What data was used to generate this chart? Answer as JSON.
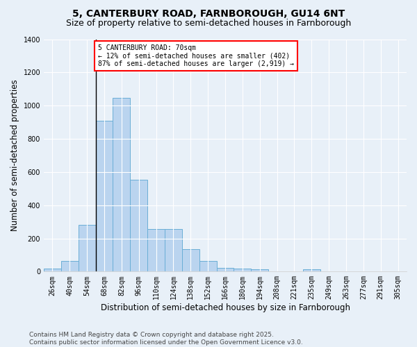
{
  "title1": "5, CANTERBURY ROAD, FARNBOROUGH, GU14 6NT",
  "title2": "Size of property relative to semi-detached houses in Farnborough",
  "xlabel": "Distribution of semi-detached houses by size in Farnborough",
  "ylabel": "Number of semi-detached properties",
  "annotation_title": "5 CANTERBURY ROAD: 70sqm",
  "annotation_line2": "← 12% of semi-detached houses are smaller (402)",
  "annotation_line3": "87% of semi-detached houses are larger (2,919) →",
  "footer1": "Contains HM Land Registry data © Crown copyright and database right 2025.",
  "footer2": "Contains public sector information licensed under the Open Government Licence v3.0.",
  "categories": [
    "26sqm",
    "40sqm",
    "54sqm",
    "68sqm",
    "82sqm",
    "96sqm",
    "110sqm",
    "124sqm",
    "138sqm",
    "152sqm",
    "166sqm",
    "180sqm",
    "194sqm",
    "208sqm",
    "221sqm",
    "235sqm",
    "249sqm",
    "263sqm",
    "277sqm",
    "291sqm",
    "305sqm"
  ],
  "values": [
    18,
    65,
    280,
    910,
    1045,
    555,
    255,
    255,
    135,
    65,
    22,
    18,
    12,
    0,
    0,
    12,
    0,
    0,
    0,
    0,
    0
  ],
  "bar_color": "#bad4ef",
  "bar_edge_color": "#6aaed6",
  "vline_index": 3,
  "annotation_box_color": "white",
  "annotation_box_edge": "red",
  "ylim": [
    0,
    1400
  ],
  "yticks": [
    0,
    200,
    400,
    600,
    800,
    1000,
    1200,
    1400
  ],
  "background_color": "#e8f0f8",
  "grid_color": "white",
  "title_fontsize": 10,
  "subtitle_fontsize": 9,
  "axis_label_fontsize": 8.5,
  "tick_fontsize": 7,
  "footer_fontsize": 6.5
}
